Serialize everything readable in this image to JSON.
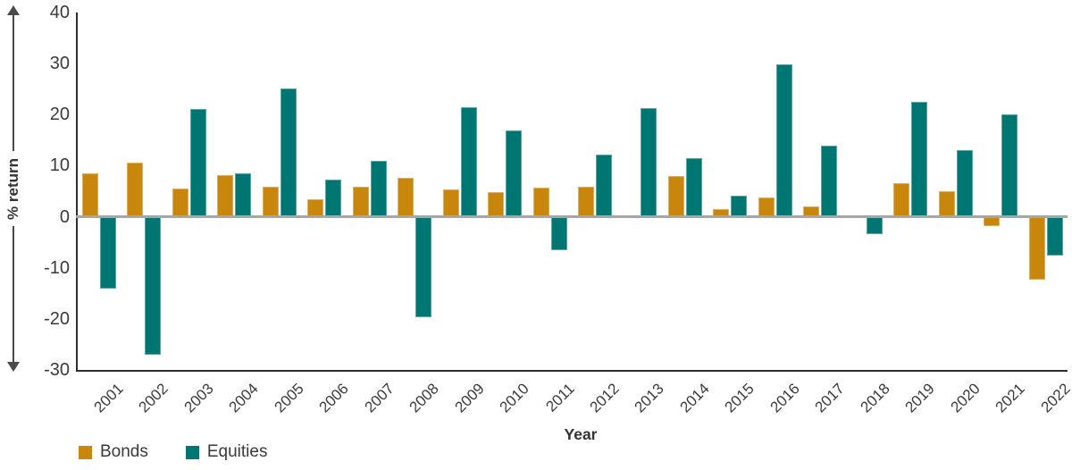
{
  "chart_data": {
    "type": "bar",
    "title": "",
    "xlabel": "Year",
    "ylabel": "% return",
    "ylim": [
      -30,
      40
    ],
    "yticks": [
      40,
      30,
      20,
      10,
      0,
      -10,
      -20,
      -30
    ],
    "grid": false,
    "legend_position": "bottom-left",
    "categories": [
      "2001",
      "2002",
      "2003",
      "2004",
      "2005",
      "2006",
      "2007",
      "2008",
      "2009",
      "2010",
      "2011",
      "2012",
      "2013",
      "2014",
      "2015",
      "2016",
      "2017",
      "2018",
      "2019",
      "2020",
      "2021",
      "2022"
    ],
    "series": [
      {
        "name": "Bonds",
        "color": "#c8860d",
        "values": [
          8.5,
          10.6,
          5.6,
          8.2,
          5.9,
          3.4,
          5.8,
          7.7,
          5.4,
          4.9,
          5.7,
          5.9,
          0.3,
          8.0,
          1.5,
          3.7,
          2.0,
          0.2,
          6.5,
          5.0,
          -1.8,
          -12.3
        ]
      },
      {
        "name": "Equities",
        "color": "#007672",
        "values": [
          -14.0,
          -27.0,
          21.1,
          8.5,
          25.2,
          7.2,
          11.0,
          -19.6,
          21.4,
          16.9,
          -6.5,
          12.1,
          21.2,
          11.4,
          4.2,
          29.9,
          14.0,
          -3.4,
          22.5,
          13.1,
          20.0,
          -7.6
        ]
      }
    ],
    "axis_colors": {
      "spine": "#2e2e2e",
      "zero_line": "#a6a6a6",
      "text": "#3a3a3a",
      "arrow": "#4a4a4a"
    }
  }
}
